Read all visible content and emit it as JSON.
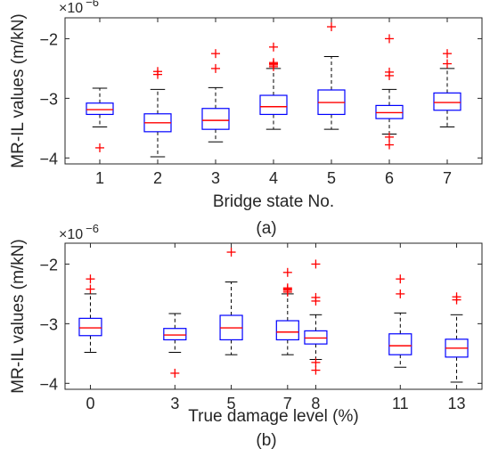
{
  "chart_data": [
    {
      "type": "box",
      "panel_label": "(a)",
      "xlabel": "Bridge state No.",
      "ylabel": "MR-IL values (m/kN)",
      "exponent": "×10",
      "exponent_power": "−6",
      "ylim": [
        -4.1,
        -1.65
      ],
      "yticks": [
        -4,
        -3,
        -2
      ],
      "ytick_labels": [
        "−4",
        "−3",
        "−2"
      ],
      "xlim": [
        0.4,
        7.6
      ],
      "categories": [
        "1",
        "2",
        "3",
        "4",
        "5",
        "6",
        "7"
      ],
      "positions": [
        1,
        2,
        3,
        4,
        5,
        6,
        7
      ],
      "boxes": [
        {
          "whisker_low": -3.48,
          "q1": -3.27,
          "median": -3.19,
          "q3": -3.08,
          "whisker_high": -2.83,
          "outliers": [
            -3.83
          ]
        },
        {
          "whisker_low": -3.98,
          "q1": -3.56,
          "median": -3.41,
          "q3": -3.26,
          "whisker_high": -2.85,
          "outliers": [
            -2.6,
            -2.55
          ]
        },
        {
          "whisker_low": -3.73,
          "q1": -3.52,
          "median": -3.37,
          "q3": -3.17,
          "whisker_high": -2.82,
          "outliers": [
            -2.5,
            -2.25
          ]
        },
        {
          "whisker_low": -3.52,
          "q1": -3.27,
          "median": -3.14,
          "q3": -2.95,
          "whisker_high": -2.5,
          "outliers": [
            -2.47,
            -2.44,
            -2.42,
            -2.4,
            -2.14
          ]
        },
        {
          "whisker_low": -3.52,
          "q1": -3.27,
          "median": -3.07,
          "q3": -2.86,
          "whisker_high": -2.3,
          "outliers": [
            -1.8
          ]
        },
        {
          "whisker_low": -3.6,
          "q1": -3.34,
          "median": -3.24,
          "q3": -3.12,
          "whisker_high": -2.85,
          "outliers": [
            -3.78,
            -3.65,
            -2.62,
            -2.56,
            -2.0
          ]
        },
        {
          "whisker_low": -3.48,
          "q1": -3.2,
          "median": -3.07,
          "q3": -2.91,
          "whisker_high": -2.5,
          "outliers": [
            -2.42,
            -2.25
          ]
        }
      ]
    },
    {
      "type": "box",
      "panel_label": "(b)",
      "xlabel": "True damage level (%)",
      "ylabel": "MR-IL values (m/kN)",
      "exponent": "×10",
      "exponent_power": "−6",
      "ylim": [
        -4.1,
        -1.65
      ],
      "yticks": [
        -4,
        -3,
        -2
      ],
      "ytick_labels": [
        "−4",
        "−3",
        "−2"
      ],
      "xlim": [
        -0.9,
        13.9
      ],
      "categories": [
        "0",
        "3",
        "5",
        "7",
        "8",
        "11",
        "13"
      ],
      "positions": [
        0,
        3,
        5,
        7,
        8,
        11,
        13
      ],
      "boxes": [
        {
          "whisker_low": -3.48,
          "q1": -3.2,
          "median": -3.07,
          "q3": -2.91,
          "whisker_high": -2.5,
          "outliers": [
            -2.42,
            -2.25
          ]
        },
        {
          "whisker_low": -3.48,
          "q1": -3.27,
          "median": -3.19,
          "q3": -3.08,
          "whisker_high": -2.83,
          "outliers": [
            -3.83
          ]
        },
        {
          "whisker_low": -3.52,
          "q1": -3.27,
          "median": -3.07,
          "q3": -2.86,
          "whisker_high": -2.3,
          "outliers": [
            -1.8
          ]
        },
        {
          "whisker_low": -3.52,
          "q1": -3.27,
          "median": -3.14,
          "q3": -2.95,
          "whisker_high": -2.5,
          "outliers": [
            -2.47,
            -2.44,
            -2.42,
            -2.4,
            -2.14
          ]
        },
        {
          "whisker_low": -3.6,
          "q1": -3.34,
          "median": -3.24,
          "q3": -3.12,
          "whisker_high": -2.85,
          "outliers": [
            -3.78,
            -3.65,
            -2.62,
            -2.56,
            -2.0
          ]
        },
        {
          "whisker_low": -3.73,
          "q1": -3.52,
          "median": -3.37,
          "q3": -3.17,
          "whisker_high": -2.82,
          "outliers": [
            -2.5,
            -2.25
          ]
        },
        {
          "whisker_low": -3.98,
          "q1": -3.56,
          "median": -3.41,
          "q3": -3.26,
          "whisker_high": -2.85,
          "outliers": [
            -2.6,
            -2.55
          ]
        }
      ]
    }
  ],
  "colors": {
    "box": "#0000ff",
    "median": "#ff0000",
    "whisker": "#000000",
    "outlier": "#ff0000",
    "axes": "#262626"
  }
}
